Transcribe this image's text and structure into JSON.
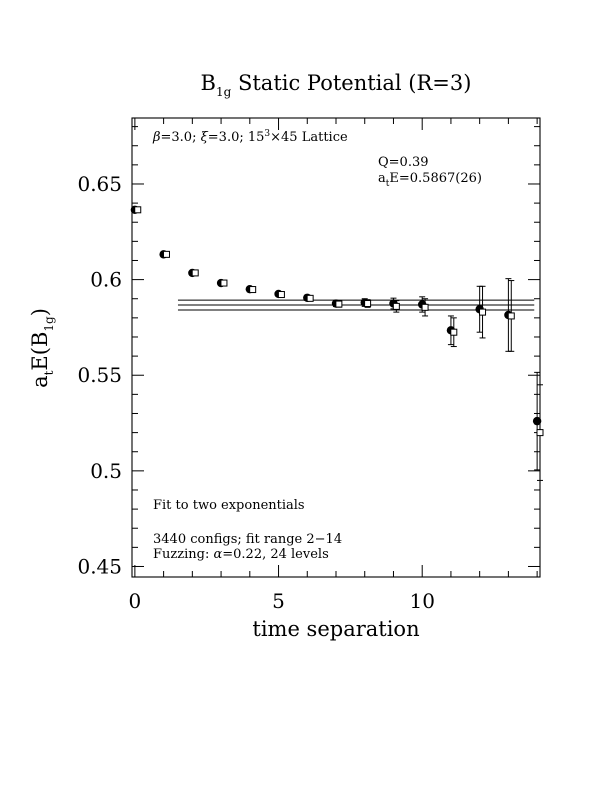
{
  "chart_data": {
    "type": "scatter",
    "title": {
      "prefix": "B",
      "subscript": "1g",
      "suffix": " Static Potential (R=3)"
    },
    "xlabel": "time separation",
    "ylabel": {
      "base": "a",
      "sub1": "t",
      "mid": "E(B",
      "sub2": "1g",
      "end": ")"
    },
    "xlim": [
      -0.1,
      14.1
    ],
    "ylim": [
      0.4445,
      0.6845
    ],
    "x_ticks": [
      0,
      5,
      10
    ],
    "x_tick_labels": [
      "0",
      "5",
      "10"
    ],
    "y_ticks": [
      0.45,
      0.5,
      0.55,
      0.6,
      0.65
    ],
    "y_tick_labels": [
      "0.45",
      "0.5",
      "0.55",
      "0.6",
      "0.65"
    ],
    "grid": false,
    "annotations": {
      "lattice": {
        "beta": "β",
        "text1": "=3.0; ",
        "xi": "ξ",
        "text2": "=3.0; 15",
        "sup": "3",
        "text3": "×45 Lattice"
      },
      "q": "Q=0.39",
      "energy": {
        "base": "a",
        "sub": "t",
        "rest": "E=0.5867(26)"
      },
      "fit_note": "Fit to two exponentials",
      "configs": "3440 configs; fit range 2−14",
      "fuzzing": {
        "prefix": "Fuzzing: ",
        "alpha": "α",
        "suffix": "=0.22, 24 levels"
      }
    },
    "fit": {
      "value": 0.5867,
      "error": 0.0026,
      "x_range": [
        1.5,
        13.9
      ]
    },
    "series": [
      {
        "marker": "filled-circle",
        "x": [
          0,
          1,
          2,
          3,
          4,
          5,
          6,
          7,
          8,
          9,
          10,
          11,
          12,
          13,
          14
        ],
        "y": [
          0.6365,
          0.6132,
          0.6035,
          0.5982,
          0.595,
          0.5925,
          0.5905,
          0.5875,
          0.588,
          0.5875,
          0.587,
          0.5735,
          0.5845,
          0.5815,
          0.526
        ],
        "yerr": [
          0.0008,
          0.0008,
          0.0009,
          0.001,
          0.001,
          0.0012,
          0.0013,
          0.0016,
          0.002,
          0.0028,
          0.004,
          0.0075,
          0.012,
          0.019,
          0.0255
        ]
      },
      {
        "marker": "open-square",
        "x": [
          0.1,
          1.1,
          2.1,
          3.1,
          4.1,
          5.1,
          6.1,
          7.1,
          8.1,
          9.1,
          10.1,
          11.1,
          12.1,
          13.1,
          14.1
        ],
        "y": [
          0.6365,
          0.6132,
          0.6035,
          0.5982,
          0.5948,
          0.5922,
          0.5902,
          0.5872,
          0.5875,
          0.586,
          0.5855,
          0.5725,
          0.583,
          0.581,
          0.52
        ],
        "yerr": [
          0.0008,
          0.0008,
          0.0009,
          0.001,
          0.001,
          0.0012,
          0.0013,
          0.0016,
          0.002,
          0.003,
          0.0045,
          0.0075,
          0.0135,
          0.0185,
          0.025
        ]
      }
    ]
  }
}
